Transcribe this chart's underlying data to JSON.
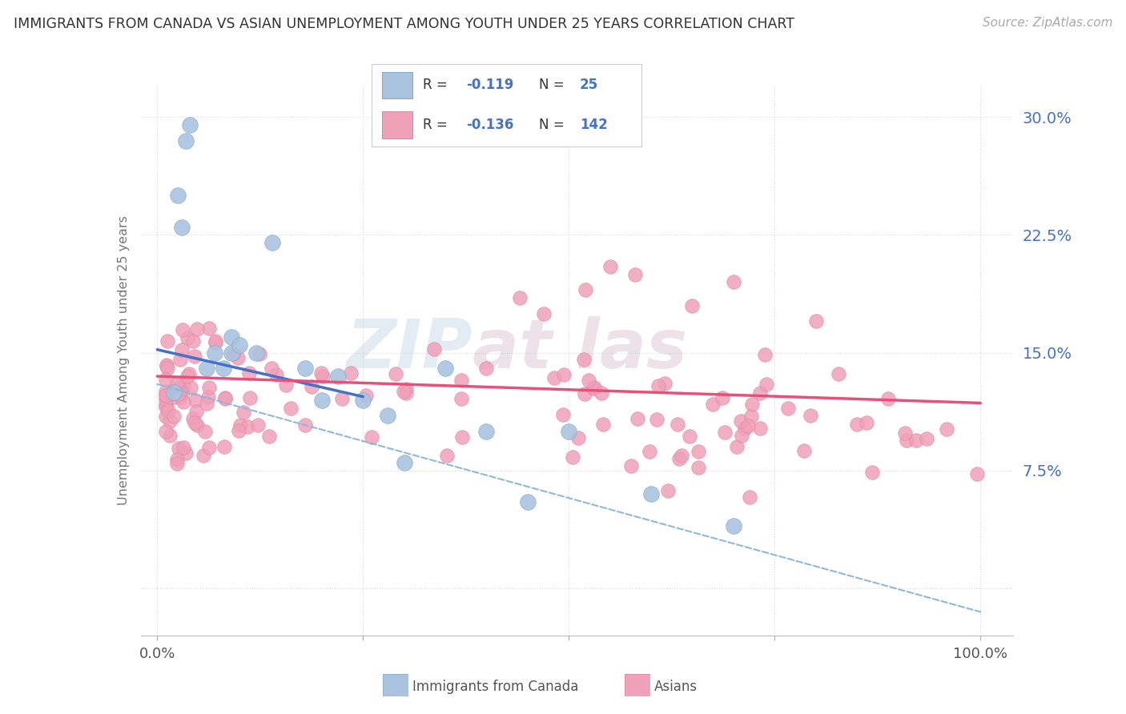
{
  "title": "IMMIGRANTS FROM CANADA VS ASIAN UNEMPLOYMENT AMONG YOUTH UNDER 25 YEARS CORRELATION CHART",
  "source": "Source: ZipAtlas.com",
  "ylabel": "Unemployment Among Youth under 25 years",
  "color_blue": "#aac4e0",
  "color_blue_edge": "#88aacc",
  "color_pink": "#f0a0b8",
  "color_pink_edge": "#dd88aa",
  "line_blue": "#4472c4",
  "line_pink": "#e8507a",
  "line_dashed_color": "#90b8d8",
  "watermark_color": "#c8d8e8",
  "blue_x": [
    2,
    3.5,
    4,
    2.5,
    3,
    6,
    7,
    8,
    9,
    9,
    10,
    12,
    14,
    18,
    20,
    22,
    25,
    28,
    30,
    35,
    40,
    45,
    50,
    60,
    70
  ],
  "blue_y": [
    12.5,
    28.5,
    29.5,
    25,
    23,
    14,
    15,
    14,
    15,
    16,
    15.5,
    15,
    22,
    14,
    12,
    13.5,
    12,
    11,
    8,
    14,
    10,
    5.5,
    10,
    6,
    4
  ],
  "blue_trend_x0": 0,
  "blue_trend_y0": 15.2,
  "blue_trend_x1": 25,
  "blue_trend_y1": 12.2,
  "pink_trend_x0": 0,
  "pink_trend_y0": 13.5,
  "pink_trend_x1": 100,
  "pink_trend_y1": 11.8,
  "dashed_x0": 0,
  "dashed_y0": 13.0,
  "dashed_x1": 100,
  "dashed_y1": -1.5,
  "xlim": [
    -2,
    104
  ],
  "ylim": [
    -3,
    32
  ],
  "ytick_vals": [
    0,
    7.5,
    15.0,
    22.5,
    30.0
  ],
  "ytick_labels_right": [
    "",
    "7.5%",
    "15.0%",
    "22.5%",
    "30.0%"
  ],
  "xtick_vals": [
    0,
    25,
    50,
    75,
    100
  ],
  "xtick_labels": [
    "0.0%",
    "",
    "",
    "",
    "100.0%"
  ],
  "figsize": [
    14.06,
    8.92
  ],
  "dpi": 100
}
